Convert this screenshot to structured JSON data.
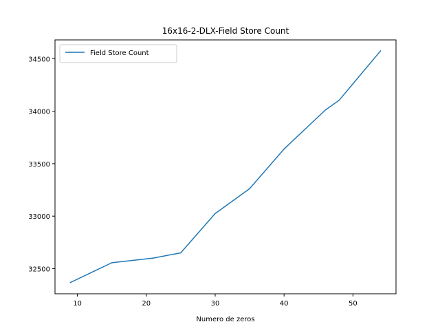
{
  "chart_data": {
    "type": "line",
    "title": "16x16-2-DLX-Field Store Count",
    "xlabel": "Numero de zeros",
    "ylabel": "",
    "xlim": [
      6.75,
      56.25
    ],
    "ylim": [
      32260,
      34680
    ],
    "xticks": [
      10,
      20,
      30,
      40,
      50
    ],
    "yticks": [
      32500,
      33000,
      33500,
      34000,
      34500
    ],
    "grid": false,
    "legend_position": "upper-left",
    "series": [
      {
        "name": "Field Store Count",
        "color": "#1f77b4",
        "x": [
          9,
          15,
          21,
          25,
          30,
          35,
          40,
          46,
          48,
          54
        ],
        "y": [
          32368,
          32556,
          32600,
          32650,
          33025,
          33262,
          33640,
          34012,
          34105,
          34575
        ]
      }
    ]
  }
}
